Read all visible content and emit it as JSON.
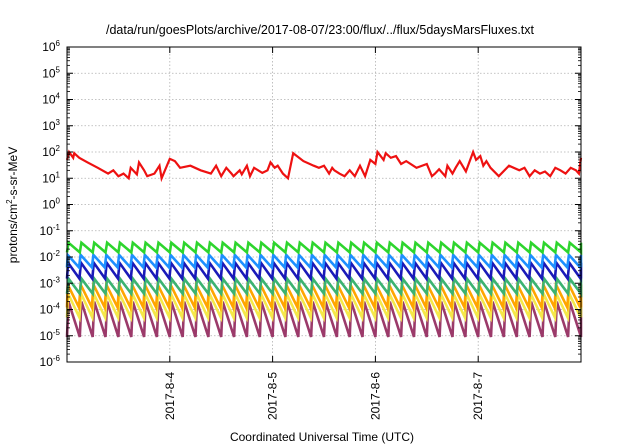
{
  "chart_data": {
    "type": "line",
    "title": "/data/run/goesPlots/archive/2017-08-07/23:00/flux/../flux/5daysMarsFluxes.txt",
    "xlabel": "Coordinated Universal Time (UTC)",
    "ylabel_base": "protons/cm",
    "ylabel_sup": "2",
    "ylabel_rest": "-s-sr-MeV",
    "yscale": "log",
    "ylim": [
      1e-06,
      1000000.0
    ],
    "y_ticks": [
      {
        "value": 1e-06,
        "base": "10",
        "exp": "-6"
      },
      {
        "value": 1e-05,
        "base": "10",
        "exp": "-5"
      },
      {
        "value": 0.0001,
        "base": "10",
        "exp": "-4"
      },
      {
        "value": 0.001,
        "base": "10",
        "exp": "-3"
      },
      {
        "value": 0.01,
        "base": "10",
        "exp": "-2"
      },
      {
        "value": 0.1,
        "base": "10",
        "exp": "-1"
      },
      {
        "value": 1,
        "base": "10",
        "exp": "0"
      },
      {
        "value": 10,
        "base": "10",
        "exp": "1"
      },
      {
        "value": 100,
        "base": "10",
        "exp": "2"
      },
      {
        "value": 1000,
        "base": "10",
        "exp": "3"
      },
      {
        "value": 10000,
        "base": "10",
        "exp": "4"
      },
      {
        "value": 100000,
        "base": "10",
        "exp": "5"
      },
      {
        "value": 1000000,
        "base": "10",
        "exp": "6"
      }
    ],
    "xlim": [
      3.0,
      8.0
    ],
    "x_ticks": [
      {
        "value": 4,
        "label": "2017-8-4"
      },
      {
        "value": 5,
        "label": "2017-8-5"
      },
      {
        "value": 6,
        "label": "2017-8-6"
      },
      {
        "value": 7,
        "label": "2017-8-7"
      }
    ],
    "grid": true,
    "sawtooth_series": [
      {
        "color": "#2dd52d",
        "peaks": 0.035,
        "troughs": 0.015,
        "period_days": 0.125
      },
      {
        "color": "#1e90ff",
        "peaks": 0.012,
        "troughs": 0.004,
        "period_days": 0.125
      },
      {
        "color": "#1a1ab8",
        "peaks": 0.006,
        "troughs": 0.0015,
        "period_days": 0.125
      },
      {
        "color": "#3cb371",
        "peaks": 0.0015,
        "troughs": 0.0004,
        "period_days": 0.125
      },
      {
        "color": "#ffa500",
        "peaks": 0.0009,
        "troughs": 0.00012,
        "period_days": 0.125
      },
      {
        "color": "#f5e84a",
        "peaks": 0.0004,
        "troughs": 5e-05,
        "period_days": 0.125
      },
      {
        "color": "#9b3a6a",
        "peaks": 0.0002,
        "troughs": 9e-06,
        "period_days": 0.125
      }
    ],
    "red_series": {
      "color": "#ee1111",
      "x": [
        3.0,
        3.02,
        3.06,
        3.07,
        3.12,
        3.2,
        3.3,
        3.4,
        3.45,
        3.5,
        3.55,
        3.6,
        3.62,
        3.68,
        3.7,
        3.75,
        3.78,
        3.85,
        3.9,
        3.92,
        4.0,
        4.05,
        4.1,
        4.2,
        4.3,
        4.4,
        4.45,
        4.5,
        4.55,
        4.6,
        4.62,
        4.68,
        4.7,
        4.75,
        4.78,
        4.82,
        4.9,
        4.95,
        4.98,
        5.02,
        5.05,
        5.1,
        5.15,
        5.2,
        5.3,
        5.4,
        5.45,
        5.5,
        5.55,
        5.58,
        5.6,
        5.65,
        5.7,
        5.75,
        5.8,
        5.85,
        5.9,
        5.95,
        6.0,
        6.02,
        6.08,
        6.1,
        6.15,
        6.2,
        6.25,
        6.3,
        6.4,
        6.5,
        6.55,
        6.58,
        6.62,
        6.68,
        6.7,
        6.75,
        6.78,
        6.82,
        6.88,
        6.95,
        6.98,
        7.02,
        7.05,
        7.08,
        7.12,
        7.2,
        7.3,
        7.4,
        7.45,
        7.5,
        7.55,
        7.6,
        7.65,
        7.7,
        7.75,
        7.8,
        7.85,
        7.9,
        7.95,
        7.98,
        8.0
      ],
      "values": [
        50,
        100,
        60,
        90,
        60,
        40,
        25,
        15,
        20,
        12,
        15,
        10,
        25,
        14,
        40,
        20,
        12,
        15,
        30,
        10,
        55,
        45,
        25,
        30,
        20,
        15,
        30,
        12,
        25,
        15,
        12,
        20,
        14,
        30,
        12,
        25,
        16,
        20,
        40,
        25,
        30,
        15,
        10,
        90,
        45,
        30,
        25,
        30,
        15,
        25,
        20,
        15,
        12,
        20,
        12,
        30,
        12,
        50,
        35,
        100,
        50,
        90,
        60,
        70,
        35,
        45,
        25,
        35,
        12,
        15,
        22,
        12,
        30,
        15,
        25,
        45,
        18,
        100,
        50,
        70,
        30,
        45,
        25,
        12,
        30,
        20,
        25,
        12,
        20,
        15,
        18,
        12,
        25,
        20,
        15,
        25,
        20,
        15,
        60
      ]
    }
  }
}
